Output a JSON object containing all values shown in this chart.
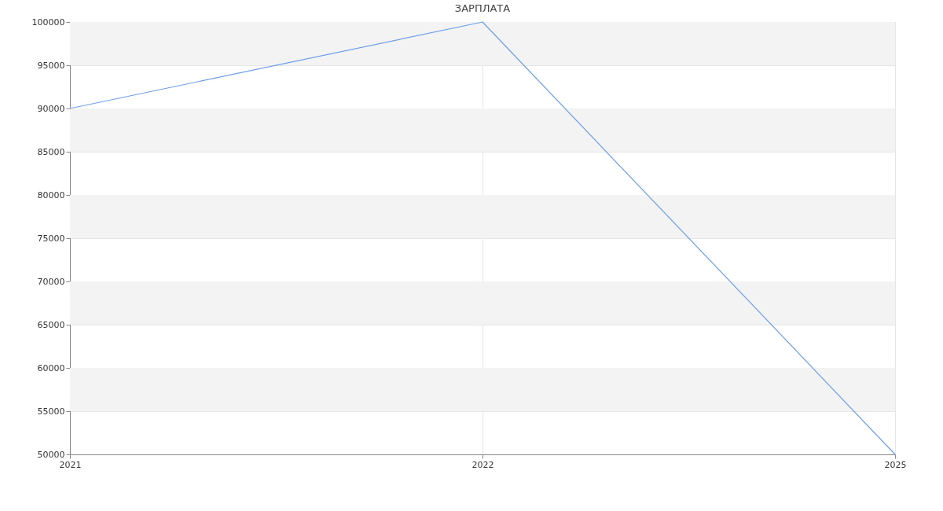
{
  "chart_data": {
    "type": "line",
    "title": "ЗАРПЛАТА",
    "categories": [
      "2021",
      "2022",
      "2025"
    ],
    "series": [
      {
        "color": "#6d9eeb",
        "values": [
          90000,
          100000,
          50000
        ]
      }
    ],
    "ylim": [
      50000,
      100000
    ],
    "yticks": [
      50000,
      55000,
      60000,
      65000,
      70000,
      75000,
      80000,
      85000,
      90000,
      95000,
      100000
    ],
    "grid": true,
    "marker": "none",
    "line_style": "solid",
    "bands": [
      {
        "axis": "y",
        "from": 55000,
        "to": 60000,
        "color": "#f3f3f3"
      },
      {
        "axis": "y",
        "from": 65000,
        "to": 70000,
        "color": "#f3f3f3"
      },
      {
        "axis": "y",
        "from": 75000,
        "to": 80000,
        "color": "#f3f3f3"
      },
      {
        "axis": "y",
        "from": 85000,
        "to": 90000,
        "color": "#f3f3f3"
      },
      {
        "axis": "y",
        "from": 95000,
        "to": 100000,
        "color": "#f3f3f3"
      }
    ]
  }
}
